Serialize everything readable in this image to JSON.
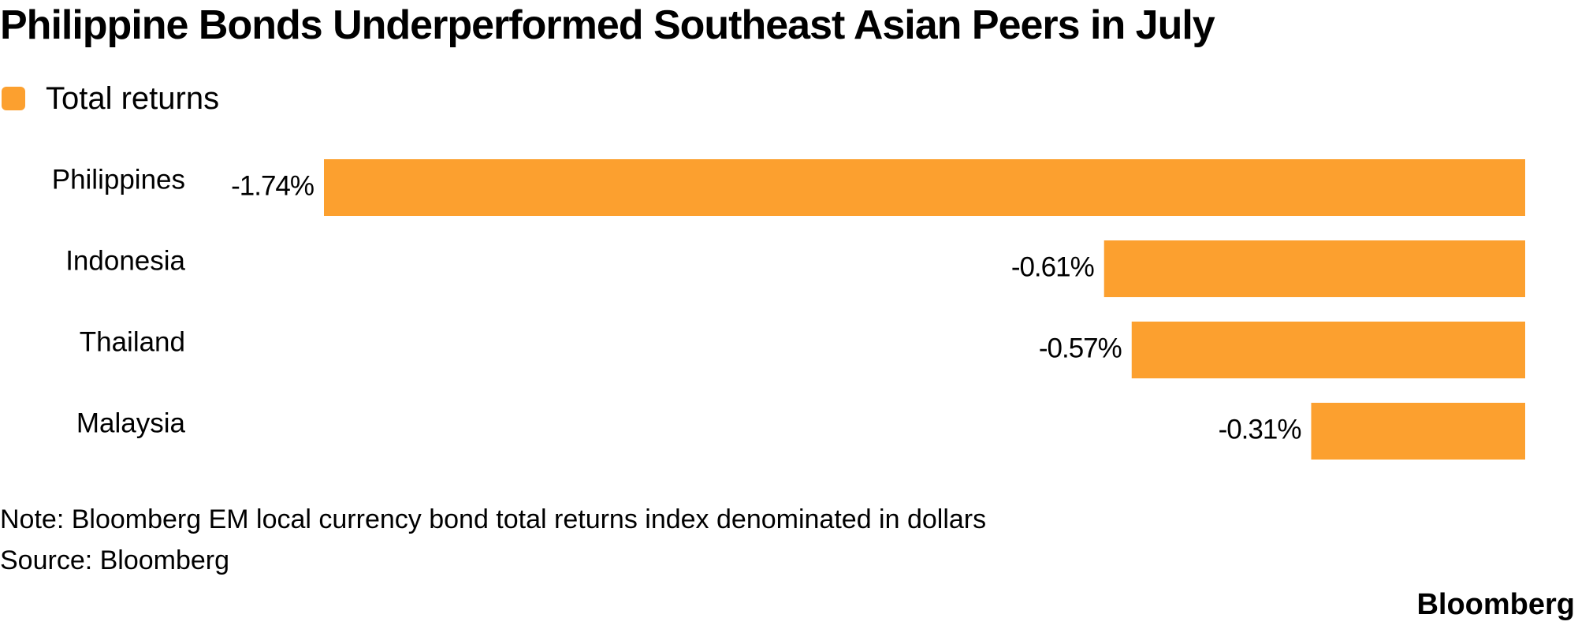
{
  "title": "Philippine Bonds Underperformed Southeast Asian Peers in July",
  "legend": {
    "label": "Total returns"
  },
  "colors": {
    "bar": "#fca02f",
    "text": "#000000",
    "background": "#ffffff"
  },
  "note": "Note: Bloomberg EM local currency bond total returns index denominated in dollars",
  "source": "Source: Bloomberg",
  "brand": "Bloomberg",
  "chart_data": {
    "type": "bar",
    "orientation": "horizontal",
    "categories": [
      "Philippines",
      "Indonesia",
      "Thailand",
      "Malaysia"
    ],
    "series": [
      {
        "name": "Total returns",
        "values": [
          -1.74,
          -0.61,
          -0.57,
          -0.31
        ]
      }
    ],
    "value_labels": [
      "-1.74%",
      "-0.61%",
      "-0.57%",
      "-0.31%"
    ],
    "xlim": [
      -1.74,
      0
    ],
    "grid": false,
    "legend_position": "top-left"
  }
}
